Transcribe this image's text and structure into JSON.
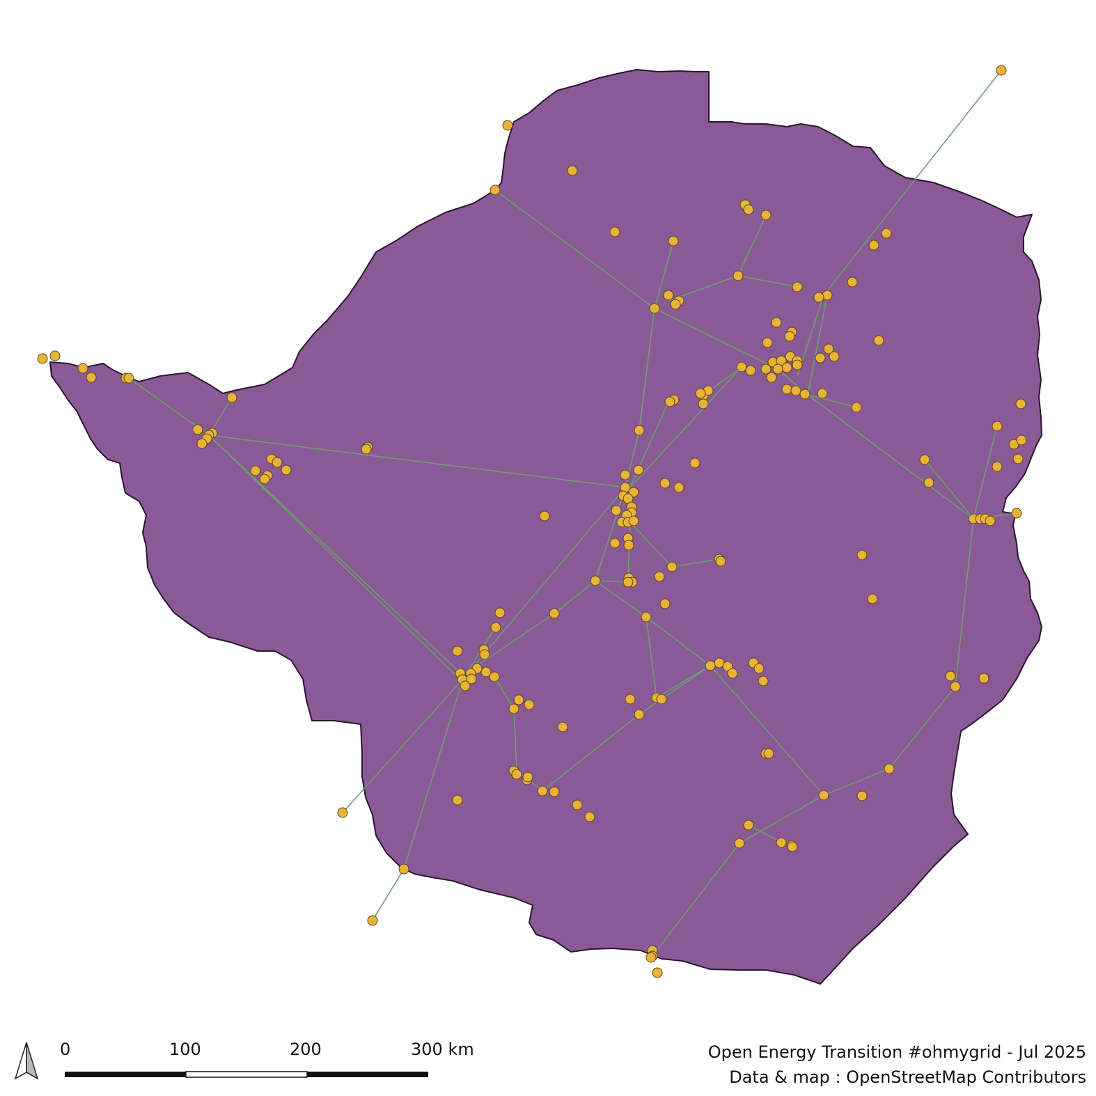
{
  "map": {
    "colors": {
      "country_fill": "#8a5a97",
      "country_border": "#2a1530",
      "power_line": "#6f9e72",
      "substation": "#e8b437",
      "background": "#ffffff"
    },
    "layers": [
      "country",
      "power-lines",
      "substations"
    ]
  },
  "north_arrow": {
    "icon": "north-arrow-icon"
  },
  "scale_bar": {
    "labels": [
      "0",
      "100",
      "200",
      "300 km"
    ]
  },
  "credits": {
    "line1": "Open Energy Transition #ohmygrid - Jul 2025",
    "line2": "Data & map : OpenStreetMap Contributors"
  }
}
